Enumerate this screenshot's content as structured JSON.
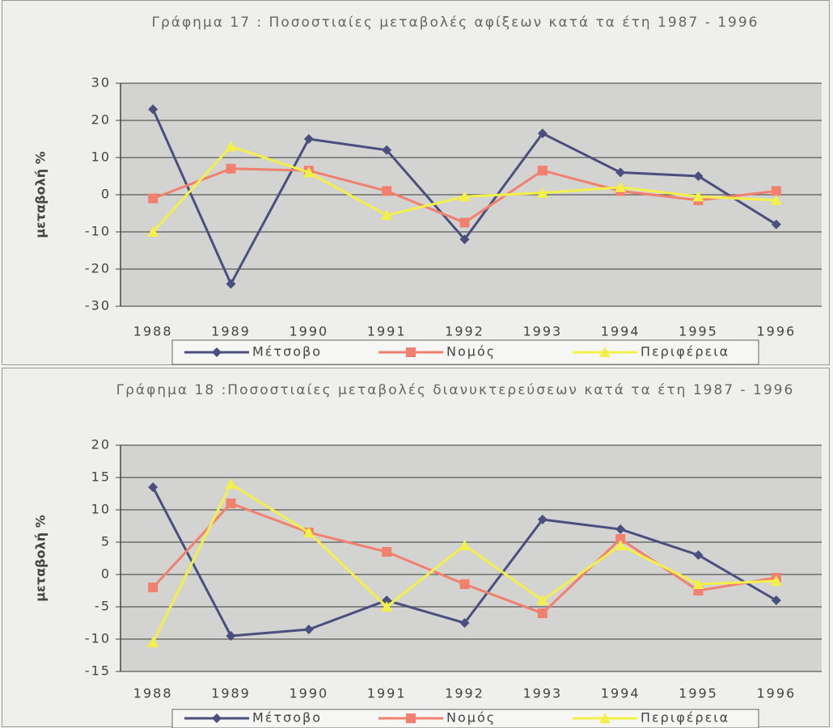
{
  "chart_data": [
    {
      "type": "line",
      "title": "Γράφημα 17 : Ποσοστιαίες μεταβολές αφίξεων κατά τα έτη 1987 - 1996",
      "y_label": "μεταβολή %",
      "categories": [
        "1988",
        "1989",
        "1990",
        "1991",
        "1992",
        "1993",
        "1994",
        "1995",
        "1996"
      ],
      "ylim": [
        -30,
        30
      ],
      "yticks": [
        -30,
        -20,
        -10,
        0,
        10,
        20,
        30
      ],
      "grid": true,
      "series": [
        {
          "name": "Μέτσοβο",
          "color": "#4b4f7e",
          "marker": "diamond",
          "values": [
            23,
            -24,
            15,
            12,
            -12,
            16.5,
            6,
            5,
            -8
          ]
        },
        {
          "name": "Νομός",
          "color": "#f2806e",
          "marker": "square",
          "values": [
            -1,
            7,
            6.5,
            1,
            -7.5,
            6.5,
            1,
            -1.5,
            1
          ]
        },
        {
          "name": "Περιφέρεια",
          "color": "#f4f04a",
          "marker": "triangle",
          "values": [
            -10,
            13,
            6,
            -5.5,
            -0.5,
            0.5,
            2,
            -0.5,
            -1.5
          ]
        }
      ]
    },
    {
      "type": "line",
      "title": "Γράφημα 18 :Ποσοστιαίες μεταβολές διανυκτερεύσεων κατά τα έτη 1987 - 1996",
      "y_label": "μεταβολή %",
      "categories": [
        "1988",
        "1989",
        "1990",
        "1991",
        "1992",
        "1993",
        "1994",
        "1995",
        "1996"
      ],
      "ylim": [
        -15,
        20
      ],
      "yticks": [
        -15,
        -10,
        -5,
        0,
        5,
        10,
        15,
        20
      ],
      "grid": true,
      "series": [
        {
          "name": "Μέτσοβο",
          "color": "#4b4f7e",
          "marker": "diamond",
          "values": [
            13.5,
            -9.5,
            -8.5,
            -4,
            -7.5,
            8.5,
            7,
            3,
            -4
          ]
        },
        {
          "name": "Νομός",
          "color": "#f2806e",
          "marker": "square",
          "values": [
            -2,
            11,
            6.5,
            3.5,
            -1.5,
            -6,
            5.5,
            -2.5,
            -0.5
          ]
        },
        {
          "name": "Περιφέρεια",
          "color": "#f4f04a",
          "marker": "triangle",
          "values": [
            -10.5,
            14,
            6.5,
            -5,
            4.5,
            -4,
            4.5,
            -1.5,
            -1
          ]
        }
      ]
    }
  ]
}
